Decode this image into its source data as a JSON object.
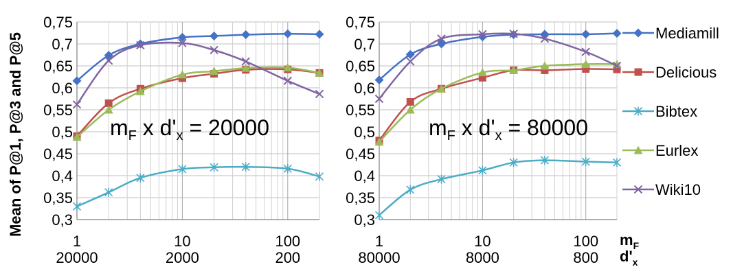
{
  "figure": {
    "ylabel": "Mean of P@1, P@3 and P@5",
    "x_axis_name_main": "m",
    "x_axis_name_main_sub": "F",
    "x_axis_name_second": "d'",
    "x_axis_name_second_sub": "x"
  },
  "legend": [
    {
      "name": "Mediamill",
      "color": "#4472C4",
      "marker": "diamond"
    },
    {
      "name": "Delicious",
      "color": "#C0504D",
      "marker": "square"
    },
    {
      "name": "Bibtex",
      "color": "#4BACC6",
      "marker": "star"
    },
    {
      "name": "Eurlex",
      "color": "#9BBB59",
      "marker": "triangle"
    },
    {
      "name": "Wiki10",
      "color": "#8064A2",
      "marker": "x"
    }
  ],
  "chart_data": [
    {
      "type": "line",
      "x_scale": "log",
      "grid": true,
      "legend_position": "right",
      "annotation": {
        "m": "m",
        "m_sub": "F",
        "x": " x ",
        "d": "d'",
        "d_sub": "x",
        "eq": " = 20000"
      },
      "ylim": [
        0.3,
        0.75
      ],
      "yticks": [
        "0,3",
        "0,35",
        "0,4",
        "0,45",
        "0,5",
        "0,55",
        "0,6",
        "0,65",
        "0,7",
        "0,75"
      ],
      "xlim": [
        1,
        200
      ],
      "xticks": [
        {
          "x": 1,
          "label": "1",
          "label2": "20000"
        },
        {
          "x": 10,
          "label": "10",
          "label2": "2000"
        },
        {
          "x": 100,
          "label": "100",
          "label2": "200"
        }
      ],
      "x": [
        1,
        2,
        4,
        10,
        20,
        40,
        100,
        200
      ],
      "series": [
        {
          "name": "Mediamill",
          "values": [
            0.616,
            0.674,
            0.7,
            0.715,
            0.718,
            0.721,
            0.723,
            0.722
          ]
        },
        {
          "name": "Delicious",
          "values": [
            0.49,
            0.565,
            0.598,
            0.622,
            0.632,
            0.641,
            0.642,
            0.634
          ]
        },
        {
          "name": "Bibtex",
          "values": [
            0.33,
            0.362,
            0.395,
            0.415,
            0.419,
            0.42,
            0.416,
            0.398
          ]
        },
        {
          "name": "Eurlex",
          "values": [
            0.488,
            0.55,
            0.592,
            0.63,
            0.638,
            0.645,
            0.646,
            0.634
          ]
        },
        {
          "name": "Wiki10",
          "values": [
            0.562,
            0.662,
            0.697,
            0.702,
            0.686,
            0.66,
            0.616,
            0.586
          ]
        }
      ]
    },
    {
      "type": "line",
      "x_scale": "log",
      "grid": true,
      "legend_position": "right",
      "annotation": {
        "m": "m",
        "m_sub": "F",
        "x": " x ",
        "d": "d'",
        "d_sub": "x",
        "eq": " = 80000"
      },
      "ylim": [
        0.3,
        0.75
      ],
      "yticks": [
        "0,3",
        "0,35",
        "0,4",
        "0,45",
        "0,5",
        "0,55",
        "0,6",
        "0,65",
        "0,7",
        "0,75"
      ],
      "xlim": [
        1,
        200
      ],
      "xticks": [
        {
          "x": 1,
          "label": "1",
          "label2": "80000"
        },
        {
          "x": 10,
          "label": "10",
          "label2": "8000"
        },
        {
          "x": 100,
          "label": "100",
          "label2": "800"
        }
      ],
      "x": [
        1,
        2,
        4,
        10,
        20,
        40,
        100,
        200
      ],
      "series": [
        {
          "name": "Mediamill",
          "values": [
            0.618,
            0.676,
            0.7,
            0.716,
            0.721,
            0.722,
            0.722,
            0.724
          ]
        },
        {
          "name": "Delicious",
          "values": [
            0.48,
            0.568,
            0.598,
            0.623,
            0.64,
            0.64,
            0.643,
            0.642
          ]
        },
        {
          "name": "Bibtex",
          "values": [
            0.31,
            0.368,
            0.392,
            0.412,
            0.43,
            0.435,
            0.432,
            0.43
          ]
        },
        {
          "name": "Eurlex",
          "values": [
            0.477,
            0.55,
            0.598,
            0.635,
            0.64,
            0.65,
            0.654,
            0.654
          ]
        },
        {
          "name": "Wiki10",
          "values": [
            0.575,
            0.66,
            0.712,
            0.722,
            0.723,
            0.712,
            0.682,
            0.65
          ]
        }
      ]
    }
  ]
}
